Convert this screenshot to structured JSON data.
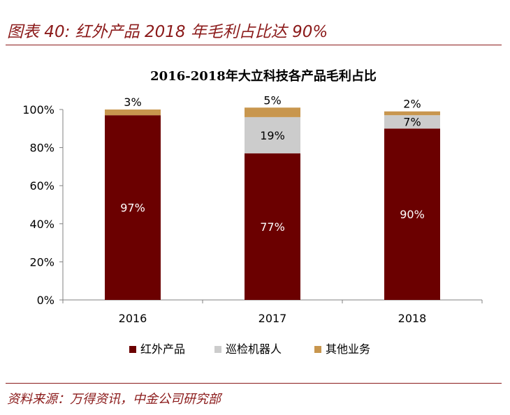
{
  "figure": {
    "title": "图表 40: 红外产品 2018 年毛利占比达 90%",
    "source": "资料来源：万得资讯，中金公司研究部"
  },
  "chart_data": {
    "type": "bar",
    "stacked": true,
    "title": "2016-2018年大立科技各产品毛利占比",
    "categories": [
      "2016",
      "2017",
      "2018"
    ],
    "series": [
      {
        "name": "红外产品",
        "values": [
          97,
          77,
          90
        ],
        "labels": [
          "97%",
          "77%",
          "90%"
        ],
        "color": "#6b0000"
      },
      {
        "name": "巡检机器人",
        "values": [
          0,
          19,
          7
        ],
        "labels": [
          "",
          "19%",
          "7%"
        ],
        "color": "#cccccc"
      },
      {
        "name": "其他业务",
        "values": [
          3,
          5,
          2
        ],
        "labels": [
          "3%",
          "5%",
          "2%"
        ],
        "color": "#c8964e"
      }
    ],
    "yticks": [
      "0%",
      "20%",
      "40%",
      "60%",
      "80%",
      "100%"
    ],
    "ylim": [
      0,
      100
    ],
    "legend_position": "bottom"
  }
}
